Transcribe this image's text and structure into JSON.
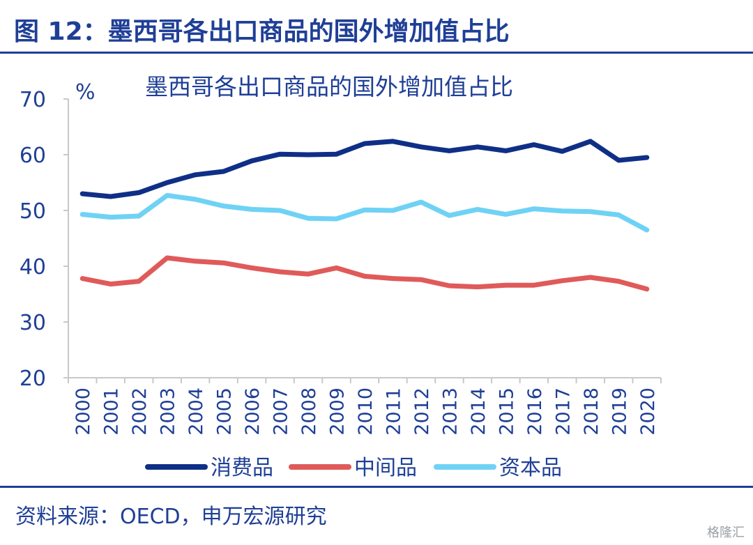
{
  "figure_title": "图 12：墨西哥各出口商品的国外增加值占比",
  "source": "资料来源：OECD，申万宏源研究",
  "watermark": "格隆汇",
  "chart_data": {
    "type": "line",
    "title": "墨西哥各出口商品的国外增加值占比",
    "ylabel": "%",
    "xlabel": "",
    "ylim": [
      20,
      70
    ],
    "yticks": [
      20,
      30,
      40,
      50,
      60,
      70
    ],
    "grid": false,
    "legend_position": "bottom",
    "x": [
      "2000",
      "2001",
      "2002",
      "2003",
      "2004",
      "2005",
      "2006",
      "2007",
      "2008",
      "2009",
      "2010",
      "2011",
      "2012",
      "2013",
      "2014",
      "2015",
      "2016",
      "2017",
      "2018",
      "2019",
      "2020"
    ],
    "series": [
      {
        "name": "消费品",
        "color": "#0f2f87",
        "values": [
          53.0,
          52.5,
          53.2,
          55.0,
          56.4,
          57.0,
          58.9,
          60.1,
          60.0,
          60.1,
          62.0,
          62.4,
          61.4,
          60.7,
          61.4,
          60.7,
          61.8,
          60.6,
          62.4,
          59.0,
          59.5
        ]
      },
      {
        "name": "中间品",
        "color": "#e05a5a",
        "values": [
          37.8,
          36.8,
          37.3,
          41.5,
          40.9,
          40.6,
          39.7,
          39.0,
          38.6,
          39.7,
          38.2,
          37.8,
          37.6,
          36.5,
          36.3,
          36.6,
          36.6,
          37.4,
          38.0,
          37.3,
          35.9
        ]
      },
      {
        "name": "资本品",
        "color": "#6fd2f5",
        "values": [
          49.3,
          48.8,
          49.0,
          52.7,
          52.0,
          50.8,
          50.2,
          50.0,
          48.6,
          48.5,
          50.1,
          50.0,
          51.5,
          49.1,
          50.2,
          49.3,
          50.3,
          49.9,
          49.8,
          49.2,
          46.5
        ]
      }
    ]
  }
}
